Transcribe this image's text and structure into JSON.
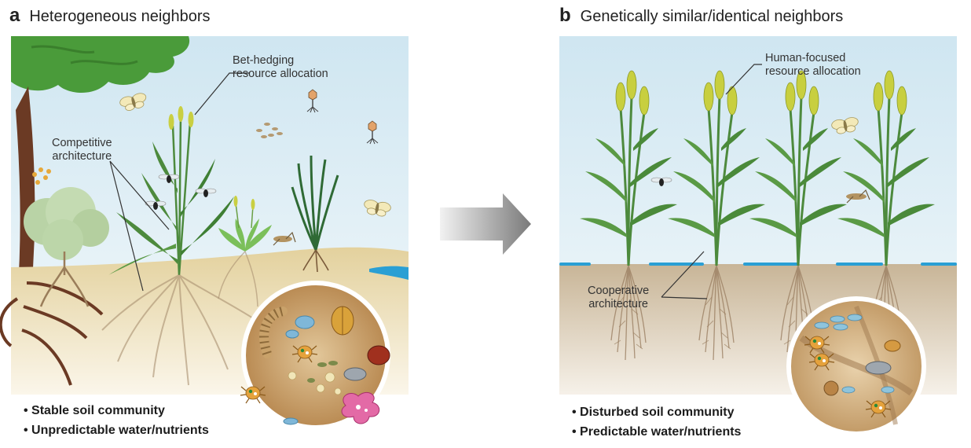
{
  "panel_a": {
    "letter": "a",
    "title": "Heterogeneous neighbors",
    "callouts": {
      "bet_hedging": [
        "Bet-hedging",
        "resource allocation"
      ],
      "competitive": [
        "Competitive",
        "architecture"
      ]
    },
    "bullets": [
      "Stable soil community",
      "Unpredictable water/nutrients"
    ]
  },
  "panel_b": {
    "letter": "b",
    "title": "Genetically similar/identical neighbors",
    "callouts": {
      "human_focused": [
        "Human-focused",
        "resource allocation"
      ],
      "cooperative": [
        "Cooperative",
        "architecture"
      ]
    },
    "bullets": [
      "Disturbed soil community",
      "Predictable water/nutrients"
    ]
  },
  "colors": {
    "sky": "#dfeef5",
    "soil_a": "#e5d5a6",
    "soil_b": "#cbbba0",
    "water": "#2a9fd4",
    "plant_green": "#3f7f3a",
    "wheat_head": "#c9cf42",
    "arrow": "#888888"
  },
  "icons": [
    "tree-icon",
    "bush-icon",
    "grass-plant-icon",
    "wheat-plant-icon",
    "moth-icon",
    "fly-icon",
    "bacteriophage-icon",
    "mite-icon",
    "beetle-icon",
    "springtail-icon",
    "amoeba-icon",
    "seeds-icon",
    "spores-icon",
    "magnifier-circle",
    "grasshopper-icon",
    "arrow-icon"
  ]
}
